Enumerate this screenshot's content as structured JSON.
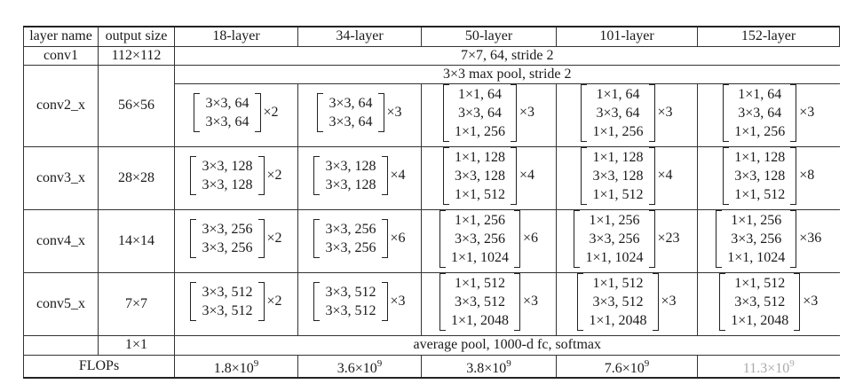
{
  "header": {
    "layer_name": "layer name",
    "output_size": "output size",
    "models": [
      "18-layer",
      "34-layer",
      "50-layer",
      "101-layer",
      "152-layer"
    ]
  },
  "conv1": {
    "name": "conv1",
    "size": "112×112",
    "desc": "7×7, 64, stride 2"
  },
  "conv2": {
    "name": "conv2_x",
    "size": "56×56",
    "pool": "3×3 max pool, stride 2",
    "blocks": [
      {
        "lines": [
          "3×3, 64",
          "3×3, 64"
        ],
        "mult": "×2"
      },
      {
        "lines": [
          "3×3, 64",
          "3×3, 64"
        ],
        "mult": "×3"
      },
      {
        "lines": [
          "1×1, 64",
          "3×3, 64",
          "1×1, 256"
        ],
        "mult": "×3"
      },
      {
        "lines": [
          "1×1, 64",
          "3×3, 64",
          "1×1, 256"
        ],
        "mult": "×3"
      },
      {
        "lines": [
          "1×1, 64",
          "3×3, 64",
          "1×1, 256"
        ],
        "mult": "×3"
      }
    ]
  },
  "conv3": {
    "name": "conv3_x",
    "size": "28×28",
    "blocks": [
      {
        "lines": [
          "3×3, 128",
          "3×3, 128"
        ],
        "mult": "×2"
      },
      {
        "lines": [
          "3×3, 128",
          "3×3, 128"
        ],
        "mult": "×4"
      },
      {
        "lines": [
          "1×1, 128",
          "3×3, 128",
          "1×1, 512"
        ],
        "mult": "×4"
      },
      {
        "lines": [
          "1×1, 128",
          "3×3, 128",
          "1×1, 512"
        ],
        "mult": "×4"
      },
      {
        "lines": [
          "1×1, 128",
          "3×3, 128",
          "1×1, 512"
        ],
        "mult": "×8"
      }
    ]
  },
  "conv4": {
    "name": "conv4_x",
    "size": "14×14",
    "blocks": [
      {
        "lines": [
          "3×3, 256",
          "3×3, 256"
        ],
        "mult": "×2"
      },
      {
        "lines": [
          "3×3, 256",
          "3×3, 256"
        ],
        "mult": "×6"
      },
      {
        "lines": [
          "1×1, 256",
          "3×3, 256",
          "1×1, 1024"
        ],
        "mult": "×6"
      },
      {
        "lines": [
          "1×1, 256",
          "3×3, 256",
          "1×1, 1024"
        ],
        "mult": "×23"
      },
      {
        "lines": [
          "1×1, 256",
          "3×3, 256",
          "1×1, 1024"
        ],
        "mult": "×36"
      }
    ]
  },
  "conv5": {
    "name": "conv5_x",
    "size": "7×7",
    "blocks": [
      {
        "lines": [
          "3×3, 512",
          "3×3, 512"
        ],
        "mult": "×2"
      },
      {
        "lines": [
          "3×3, 512",
          "3×3, 512"
        ],
        "mult": "×3"
      },
      {
        "lines": [
          "1×1, 512",
          "3×3, 512",
          "1×1, 2048"
        ],
        "mult": "×3"
      },
      {
        "lines": [
          "1×1, 512",
          "3×3, 512",
          "1×1, 2048"
        ],
        "mult": "×3"
      },
      {
        "lines": [
          "1×1, 512",
          "3×3, 512",
          "1×1, 2048"
        ],
        "mult": "×3"
      }
    ]
  },
  "final": {
    "size": "1×1",
    "desc": "average pool, 1000-d fc, softmax"
  },
  "flops": {
    "label": "FLOPs",
    "values": [
      {
        "base": "1.8×10",
        "exp": "9"
      },
      {
        "base": "3.6×10",
        "exp": "9"
      },
      {
        "base": "3.8×10",
        "exp": "9"
      },
      {
        "base": "7.6×10",
        "exp": "9"
      },
      {
        "base": "11.3×10",
        "exp": "9"
      }
    ]
  }
}
